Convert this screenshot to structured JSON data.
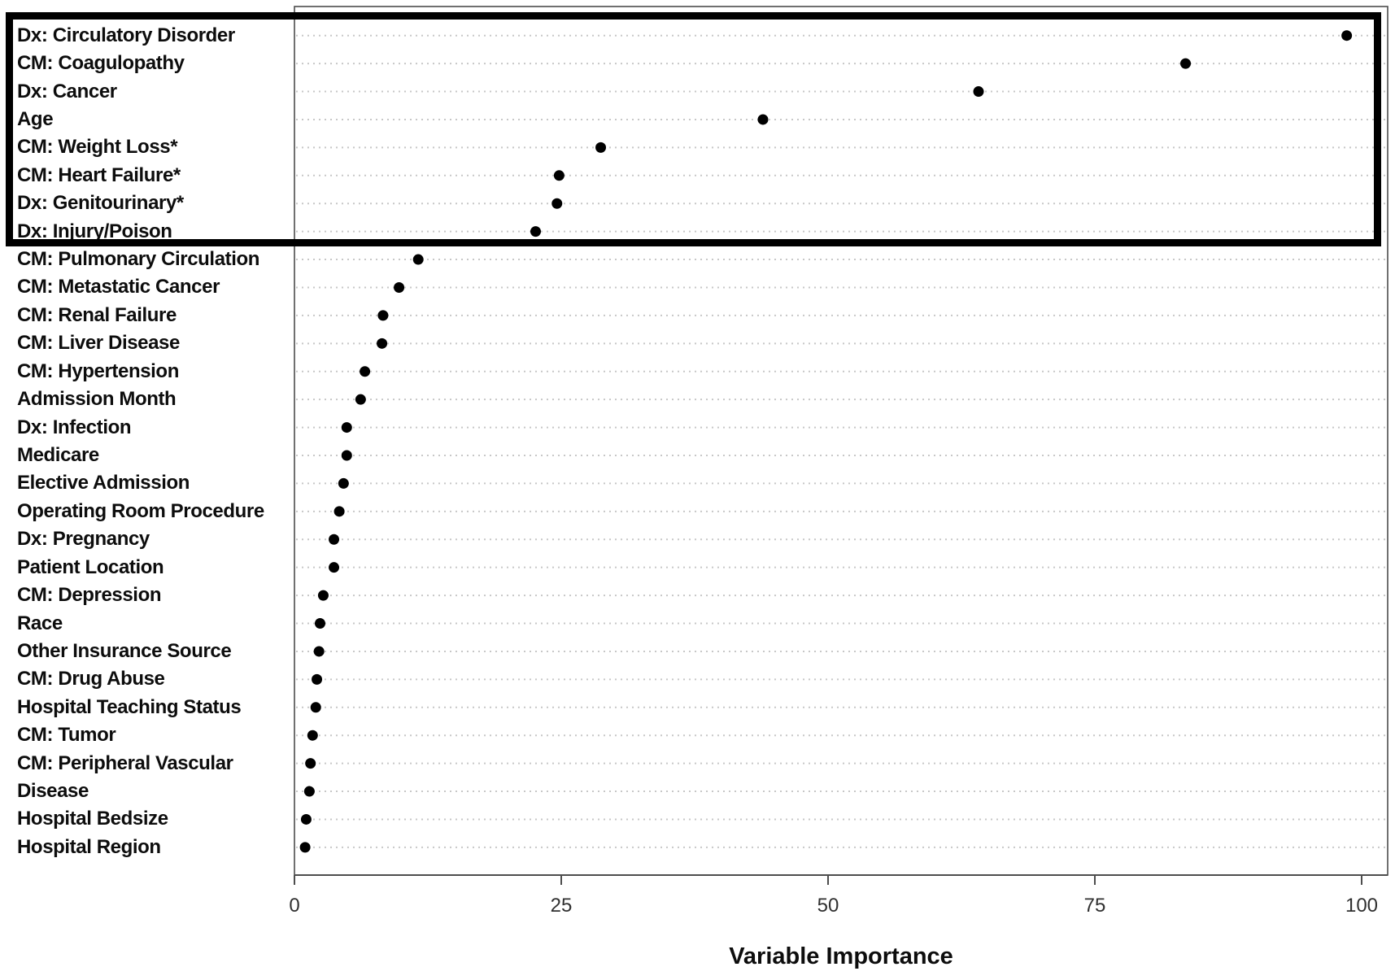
{
  "figure": {
    "background": "#ffffff"
  },
  "chart_data": {
    "type": "scatter",
    "variant": "horizontal-dot-plot",
    "title": "",
    "xlabel": "Variable Importance",
    "ylabel": "",
    "xlim": [
      0,
      102
    ],
    "x_ticks": [
      0,
      25,
      50,
      75,
      100
    ],
    "grid": "dotted-horizontal-per-row",
    "legend": "none",
    "categories": [
      "Dx: Circulatory Disorder",
      "CM: Coagulopathy",
      "Dx: Cancer",
      "Age",
      "CM: Weight Loss*",
      "CM: Heart Failure*",
      "Dx: Genitourinary*",
      "Dx: Injury/Poison",
      "CM: Pulmonary Circulation",
      "CM: Metastatic Cancer",
      "CM: Renal Failure",
      "CM: Liver Disease",
      "CM: Hypertension",
      "Admission Month",
      "Dx: Infection",
      "Medicare",
      "Elective Admission",
      "Operating Room Procedure",
      "Dx: Pregnancy",
      "Patient Location",
      "CM: Depression",
      "Race",
      "Other Insurance Source",
      "CM: Drug Abuse",
      "Hospital Teaching Status",
      "CM: Tumor",
      "CM: Peripheral Vascular",
      "Disease",
      "Hospital Bedsize",
      "Hospital Region"
    ],
    "values": [
      98.6,
      83.5,
      64.1,
      43.9,
      28.7,
      24.8,
      24.6,
      22.6,
      11.6,
      9.8,
      8.3,
      8.2,
      6.6,
      6.2,
      4.9,
      4.9,
      4.6,
      4.2,
      3.7,
      3.7,
      2.7,
      2.4,
      2.3,
      2.1,
      2.0,
      1.7,
      1.5,
      1.4,
      1.1,
      1.0
    ],
    "highlight": {
      "style": "thick-black-rectangle",
      "rows_first": 1,
      "rows_last": 8
    },
    "colors": {
      "dot": "#000000",
      "grid": "#c7c7c7",
      "axis": "#4d4d4d",
      "highlight_border": "#000000",
      "label_text": "#0d0d0d",
      "tick_text": "#303030"
    }
  }
}
